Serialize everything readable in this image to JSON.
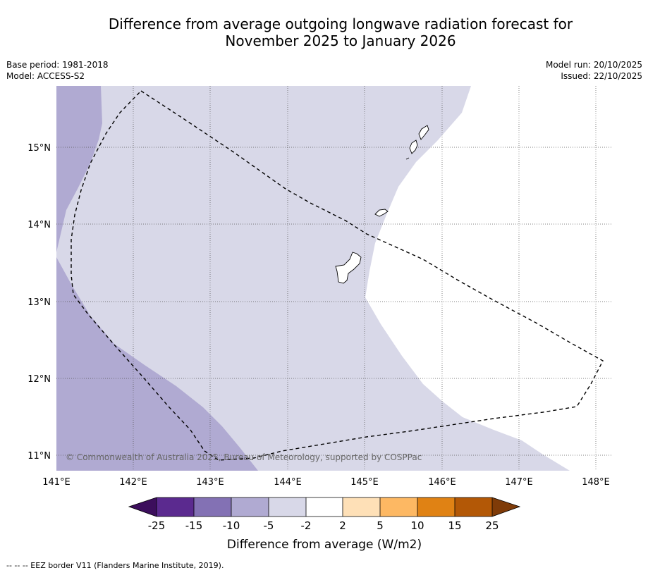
{
  "title": {
    "line1": "Difference from average outgoing longwave radiation forecast for",
    "line2": "November 2025 to January 2026"
  },
  "info_left": {
    "base_period": "Base period: 1981-2018",
    "model": "Model: ACCESS-S2"
  },
  "info_right": {
    "model_run": "Model run: 20/10/2025",
    "issued": "Issued: 22/10/2025"
  },
  "map": {
    "lon_labels": [
      "141°E",
      "142°E",
      "143°E",
      "144°E",
      "145°E",
      "146°E",
      "147°E",
      "148°E"
    ],
    "lat_labels": [
      "15°N",
      "14°N",
      "13°N",
      "12°N",
      "11°N"
    ],
    "copyright": "© Commonwealth of Australia 2025, Bureau of Meteorology, supported by COSPPac",
    "fill_colors": {
      "range_-10_-5": "#b0aad2",
      "range_-5_-2": "#d8d8e8",
      "range_-2_2": "#ffffff"
    }
  },
  "legend": {
    "tick_labels": [
      "-25",
      "-15",
      "-10",
      "-5",
      "-2",
      "2",
      "5",
      "10",
      "15",
      "25"
    ],
    "colors": [
      "#3c0e5c",
      "#5b2a8f",
      "#8371b4",
      "#b0aad2",
      "#d8d8e8",
      "#ffffff",
      "#fee0b7",
      "#fdb863",
      "#e08214",
      "#b35806",
      "#7f3b08"
    ],
    "label": "Difference from average (W/m2)"
  },
  "footnote": "--  --  -- EEZ border V11 (Flanders Marine Institute, 2019)."
}
